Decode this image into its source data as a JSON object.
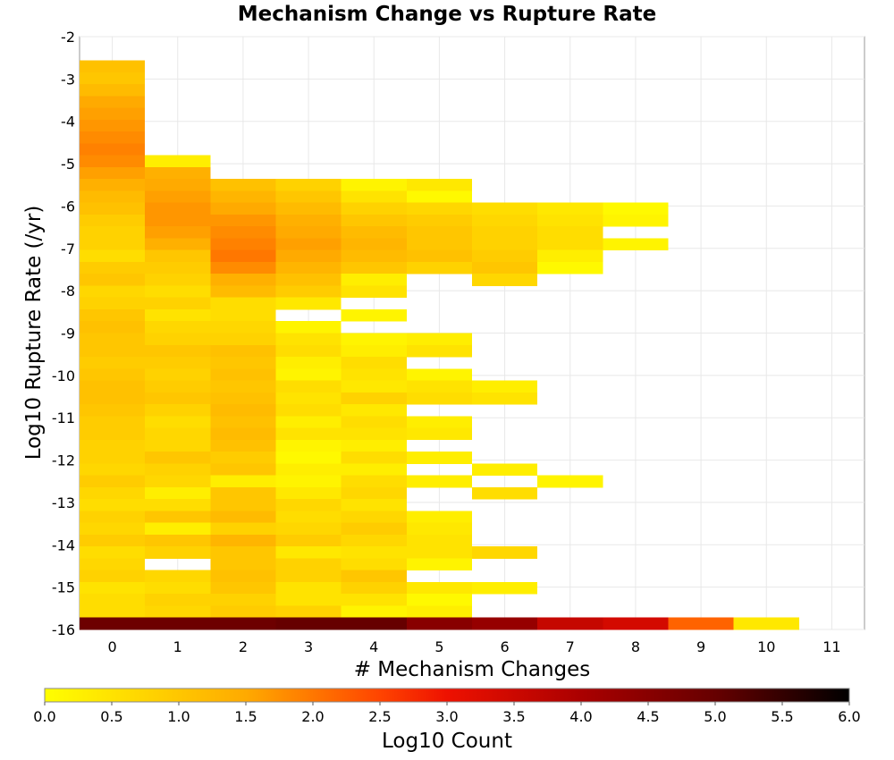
{
  "chart_data": {
    "type": "heatmap",
    "title": "Mechanism Change vs Rupture Rate",
    "xlabel": "# Mechanism Changes",
    "ylabel": "Log10 Rupture Rate (/yr)",
    "x_ticks": [
      "0",
      "1",
      "2",
      "3",
      "4",
      "5",
      "6",
      "7",
      "8",
      "9",
      "10",
      "11"
    ],
    "y_ticks": [
      "-2",
      "-3",
      "-4",
      "-5",
      "-6",
      "-7",
      "-8",
      "-9",
      "-10",
      "-11",
      "-12",
      "-13",
      "-14",
      "-15",
      "-16"
    ],
    "xlim": [
      -0.5,
      11.5
    ],
    "ylim": [
      -16,
      -2
    ],
    "y_bin_width": 0.28,
    "grid": true,
    "colorbar": {
      "label": "Log10 Count",
      "range": [
        0,
        6
      ],
      "ticks": [
        "0.0",
        "0.5",
        "1.0",
        "1.5",
        "2.0",
        "2.5",
        "3.0",
        "3.5",
        "4.0",
        "4.5",
        "5.0",
        "5.5",
        "6.0"
      ],
      "stops": [
        {
          "v": 0.0,
          "color": "#ffff00"
        },
        {
          "v": 1.5,
          "color": "#ffaa00"
        },
        {
          "v": 2.5,
          "color": "#ff4400"
        },
        {
          "v": 3.0,
          "color": "#ee1100"
        },
        {
          "v": 4.0,
          "color": "#aa0000"
        },
        {
          "v": 5.0,
          "color": "#660000"
        },
        {
          "v": 6.0,
          "color": "#000000"
        }
      ]
    },
    "columns": [
      [
        1.1,
        1.0,
        1.2,
        1.5,
        1.6,
        1.7,
        1.8,
        1.9,
        1.8,
        1.6,
        1.4,
        1.2,
        1.1,
        0.9,
        0.8,
        0.8,
        0.6,
        0.9,
        1.0,
        0.7,
        0.8,
        1.0,
        1.1,
        1.0,
        1.0,
        0.9,
        1.0,
        1.1,
        1.1,
        1.0,
        0.9,
        0.9,
        0.8,
        0.8,
        0.7,
        0.9,
        0.7,
        0.6,
        0.8,
        0.7,
        0.9,
        0.6,
        0.7,
        0.8,
        0.5,
        0.6,
        0.6,
        4.9
      ],
      [
        null,
        null,
        null,
        null,
        null,
        null,
        null,
        0.3,
        1.4,
        1.5,
        1.6,
        1.7,
        1.7,
        1.6,
        1.4,
        1.0,
        0.9,
        0.8,
        0.6,
        0.8,
        0.5,
        0.7,
        0.8,
        1.0,
        0.9,
        0.8,
        0.9,
        1.0,
        0.8,
        0.6,
        0.7,
        0.7,
        1.0,
        0.8,
        0.7,
        0.3,
        0.6,
        1.0,
        0.3,
        1.0,
        0.8,
        null,
        0.7,
        0.6,
        0.8,
        0.7,
        4.9
      ],
      [
        null,
        null,
        null,
        null,
        null,
        null,
        null,
        null,
        1.1,
        1.3,
        1.5,
        1.7,
        1.8,
        1.9,
        2.0,
        1.8,
        1.4,
        1.2,
        0.6,
        0.6,
        0.7,
        0.8,
        1.1,
        1.0,
        1.1,
        1.0,
        1.1,
        1.2,
        1.1,
        1.2,
        1.1,
        0.9,
        1.0,
        0.3,
        1.0,
        1.0,
        1.2,
        0.8,
        1.3,
        1.0,
        1.0,
        1.1,
        1.0,
        0.8,
        0.9,
        4.9
      ],
      [
        null,
        null,
        null,
        null,
        null,
        null,
        null,
        null,
        0.8,
        1.0,
        1.2,
        1.4,
        1.5,
        1.6,
        1.5,
        1.3,
        1.1,
        0.9,
        0.4,
        null,
        0.2,
        0.5,
        0.6,
        0.3,
        0.2,
        0.6,
        0.5,
        0.6,
        0.3,
        0.5,
        0.2,
        0.1,
        0.3,
        0.2,
        0.4,
        0.7,
        0.6,
        0.7,
        0.9,
        0.4,
        0.8,
        0.8,
        0.5,
        0.5,
        0.8,
        5.0
      ],
      [
        null,
        null,
        null,
        null,
        null,
        null,
        null,
        null,
        0.2,
        0.5,
        0.8,
        1.0,
        1.2,
        1.3,
        1.2,
        1.0,
        0.3,
        0.5,
        null,
        0.2,
        null,
        0.2,
        0.3,
        0.6,
        0.5,
        0.4,
        0.8,
        0.4,
        0.6,
        0.5,
        0.3,
        0.6,
        0.3,
        0.6,
        0.7,
        0.5,
        0.7,
        0.9,
        0.7,
        0.5,
        0.6,
        1.0,
        0.8,
        0.5,
        0.2,
        5.0
      ],
      [
        null,
        null,
        null,
        null,
        null,
        null,
        null,
        null,
        0.4,
        0.1,
        0.7,
        0.9,
        1.0,
        1.0,
        1.1,
        0.8,
        null,
        null,
        null,
        null,
        null,
        0.3,
        0.5,
        null,
        0.2,
        0.5,
        0.6,
        null,
        0.3,
        0.4,
        null,
        0.3,
        null,
        0.3,
        null,
        null,
        0.3,
        0.4,
        0.5,
        0.5,
        0.2,
        null,
        0.4,
        0.1,
        0.3,
        4.5
      ],
      [
        null,
        null,
        null,
        null,
        null,
        null,
        null,
        null,
        null,
        null,
        0.6,
        0.7,
        0.8,
        0.8,
        0.9,
        1.0,
        0.7,
        null,
        null,
        null,
        null,
        null,
        null,
        null,
        null,
        0.3,
        0.5,
        null,
        null,
        null,
        null,
        null,
        0.3,
        null,
        0.6,
        null,
        null,
        null,
        null,
        0.7,
        null,
        null,
        0.3,
        null,
        null,
        4.3
      ],
      [
        null,
        null,
        null,
        null,
        null,
        null,
        null,
        null,
        null,
        null,
        0.4,
        0.5,
        0.6,
        0.6,
        0.3,
        0.1,
        null,
        null,
        null,
        null,
        null,
        null,
        null,
        null,
        null,
        null,
        null,
        null,
        null,
        null,
        null,
        null,
        null,
        0.2,
        null,
        null,
        null,
        null,
        null,
        null,
        null,
        null,
        null,
        null,
        null,
        3.6
      ],
      [
        null,
        null,
        null,
        null,
        null,
        null,
        null,
        null,
        null,
        null,
        0.1,
        0.2,
        null,
        0.2,
        null,
        null,
        null,
        null,
        null,
        null,
        null,
        null,
        null,
        null,
        null,
        null,
        null,
        null,
        null,
        null,
        null,
        null,
        null,
        null,
        null,
        null,
        null,
        null,
        null,
        null,
        null,
        null,
        null,
        null,
        null,
        3.4
      ],
      [
        null,
        null,
        null,
        null,
        null,
        null,
        null,
        null,
        null,
        null,
        null,
        null,
        null,
        null,
        null,
        null,
        null,
        null,
        null,
        null,
        null,
        null,
        null,
        null,
        null,
        null,
        null,
        null,
        null,
        null,
        null,
        null,
        null,
        null,
        null,
        null,
        null,
        null,
        null,
        null,
        null,
        null,
        null,
        null,
        null,
        2.2
      ],
      [
        null,
        null,
        null,
        null,
        null,
        null,
        null,
        null,
        null,
        null,
        null,
        null,
        null,
        null,
        null,
        null,
        null,
        null,
        null,
        null,
        null,
        null,
        null,
        null,
        null,
        null,
        null,
        null,
        null,
        null,
        null,
        null,
        null,
        null,
        null,
        null,
        null,
        null,
        null,
        null,
        null,
        null,
        null,
        null,
        null,
        0.4
      ],
      [
        null,
        null,
        null,
        null,
        null,
        null,
        null,
        null,
        null,
        null,
        null,
        null,
        null,
        null,
        null,
        null,
        null,
        null,
        null,
        null,
        null,
        null,
        null,
        null,
        null,
        null,
        null,
        null,
        null,
        null,
        null,
        null,
        null,
        null,
        null,
        null,
        null,
        null,
        null,
        null,
        null,
        null,
        null,
        null,
        null,
        null
      ]
    ]
  }
}
